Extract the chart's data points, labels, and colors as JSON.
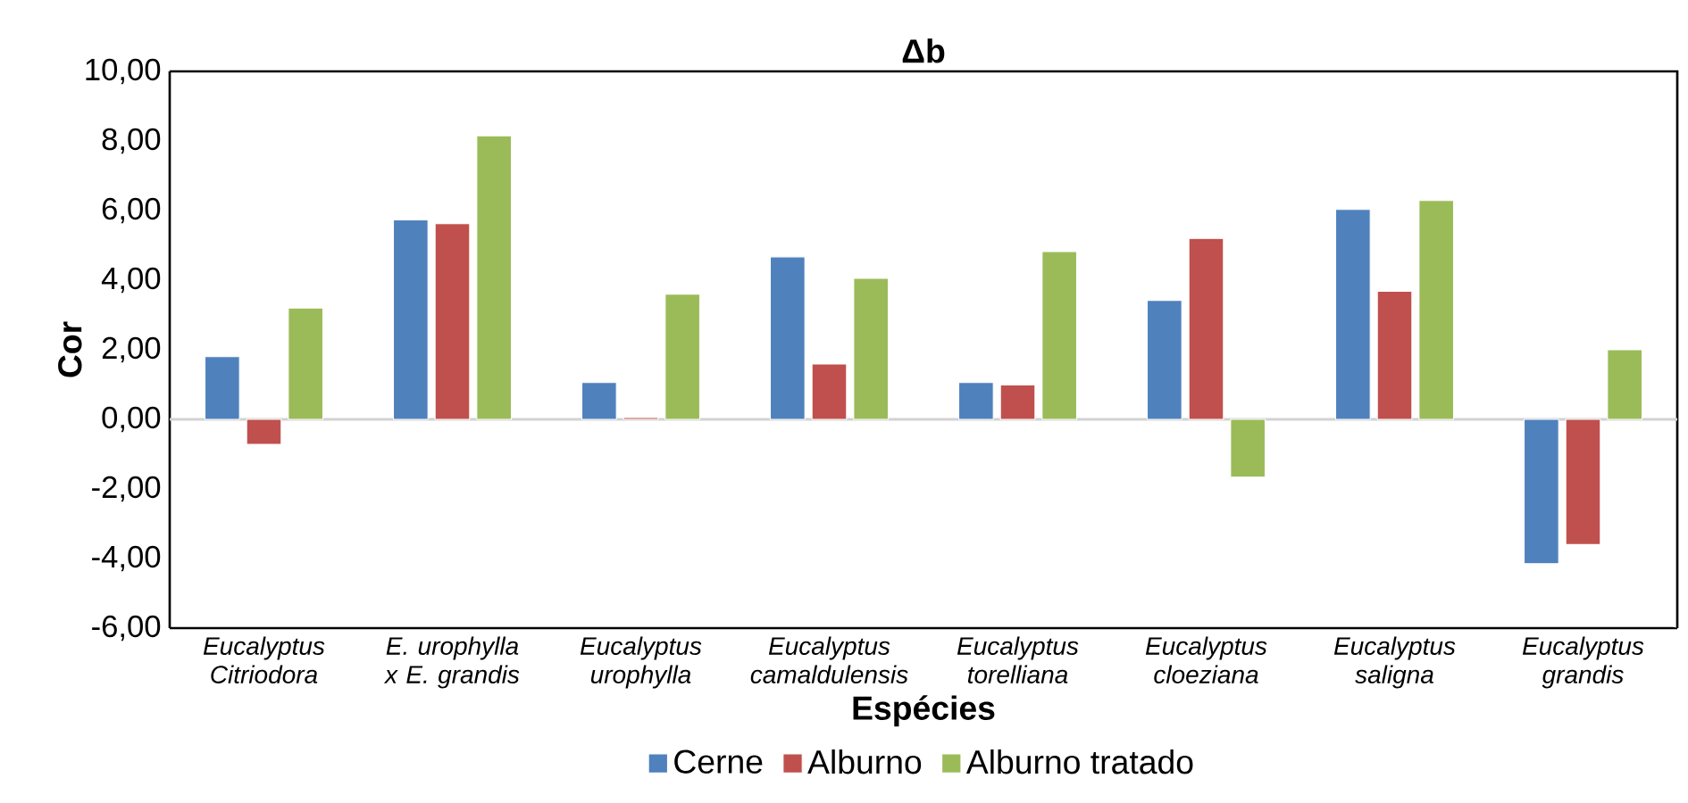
{
  "chart_data": {
    "type": "bar",
    "title": "Δb",
    "xlabel": "Espécies",
    "ylabel": "Cor",
    "categories": [
      "Eucalyptus Citriodora",
      "E. urophylla x E. grandis",
      "Eucalyptus urophylla",
      "Eucalyptus camaldulensis",
      "Eucalyptus torelliana",
      "Eucalyptus cloeziana",
      "Eucalyptus saligna",
      "Eucalyptus grandis"
    ],
    "series": [
      {
        "name": "Cerne",
        "color": "#4f81bd",
        "values": [
          1.8,
          5.73,
          1.06,
          4.67,
          1.06,
          3.42,
          6.03,
          -4.15
        ]
      },
      {
        "name": "Alburno",
        "color": "#c0504d",
        "values": [
          -0.72,
          5.62,
          0.05,
          1.59,
          0.99,
          5.2,
          3.68,
          -3.6
        ]
      },
      {
        "name": "Alburno tratado",
        "color": "#9bbb59",
        "values": [
          3.2,
          8.15,
          3.6,
          4.05,
          4.82,
          -1.66,
          6.29,
          2.0
        ]
      }
    ],
    "ylim": [
      -6,
      10
    ],
    "yticks": [
      {
        "value": -6,
        "label": "-6,00"
      },
      {
        "value": -4,
        "label": "-4,00"
      },
      {
        "value": -2,
        "label": "-2,00"
      },
      {
        "value": 0,
        "label": "0,00"
      },
      {
        "value": 2,
        "label": "2,00"
      },
      {
        "value": 4,
        "label": "4,00"
      },
      {
        "value": 6,
        "label": "6,00"
      },
      {
        "value": 8,
        "label": "8,00"
      },
      {
        "value": 10,
        "label": "10,00"
      }
    ],
    "legend": "bottom"
  }
}
